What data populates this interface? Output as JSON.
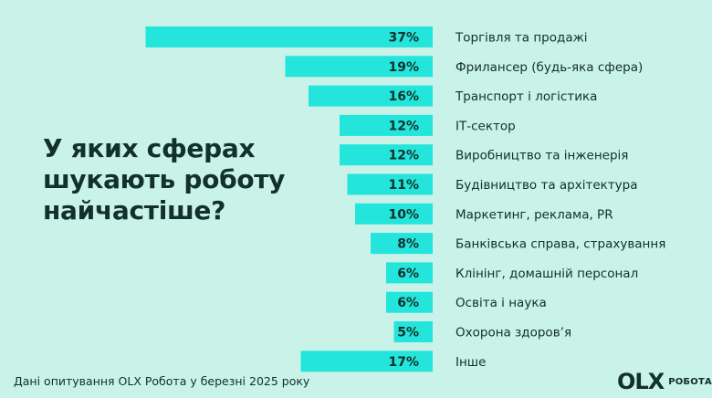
{
  "title_lines": [
    "У яких сферах",
    "шукають роботу",
    "найчастіше?"
  ],
  "footnote": "Дані опитування OLX Робота у березні 2025 року",
  "logo": {
    "mark": "OLX",
    "sub": "РОБОТА"
  },
  "colors": {
    "background": "#c9f2e9",
    "bar": "#23e5db",
    "text": "#12302c"
  },
  "chart_data": {
    "type": "bar",
    "orientation": "horizontal",
    "categories": [
      "Торгівля та продажі",
      "Фрилансер (будь-яка сфера)",
      "Транспорт і логістика",
      "ІТ-сектор",
      "Виробництво та інженерія",
      "Будівництво та архітектура",
      "Маркетинг, реклама, PR",
      "Банківська справа, страхування",
      "Клінінг, домашній персонал",
      "Освіта і наука",
      "Охорона здоров’я",
      "Інше"
    ],
    "values": [
      37,
      19,
      16,
      12,
      12,
      11,
      10,
      8,
      6,
      6,
      5,
      17
    ],
    "value_labels": [
      "37%",
      "19%",
      "16%",
      "12%",
      "12%",
      "11%",
      "10%",
      "8%",
      "6%",
      "6%",
      "5%",
      "17%"
    ],
    "unit": "%",
    "bar_color": "#23e5db",
    "grid": false
  }
}
